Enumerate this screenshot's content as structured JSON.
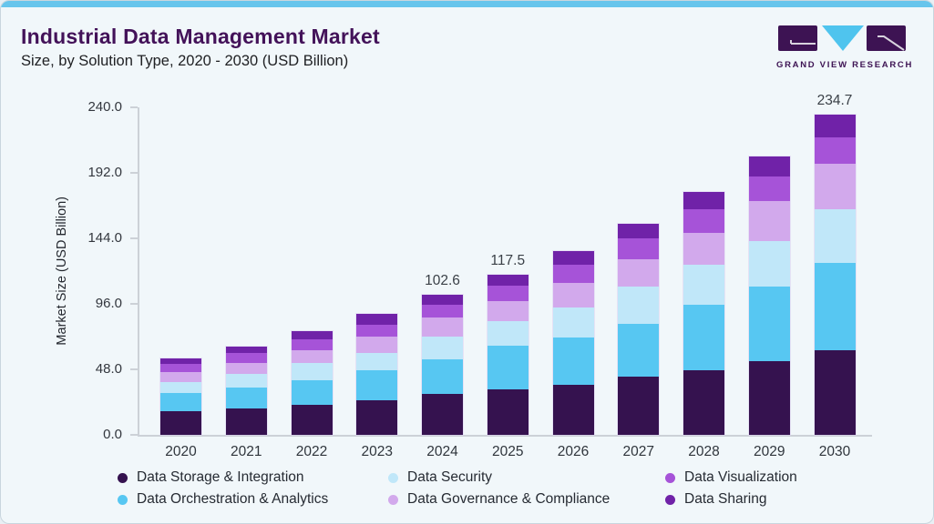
{
  "page": {
    "title": "Industrial Data Management Market",
    "subtitle": "Size, by Solution Type, 2020 - 2030 (USD Billion)",
    "logo_text": "GRAND VIEW RESEARCH"
  },
  "colors": {
    "accent_top_bar": "#67c5ec",
    "card_background": "#f1f7fa",
    "card_border": "#c9d6de",
    "title_text": "#431259",
    "subtitle_text": "#202124",
    "axis_line": "#ccd1d7",
    "tick_text": "#33373e",
    "legend_text": "#262b33",
    "logo_purple": "#3d1353",
    "logo_blue": "#4fc4ee"
  },
  "chart_data": {
    "type": "bar",
    "stacked": true,
    "title": "Industrial Data Management Market Size, by Solution Type, 2020 - 2030 (USD Billion)",
    "xlabel": "",
    "ylabel": "Market Size (USD Billion)",
    "ylim": [
      0,
      240
    ],
    "ytick_values": [
      0,
      48,
      96,
      144,
      192,
      240
    ],
    "ytick_format_decimals": 1,
    "grid": false,
    "categories": [
      "2020",
      "2021",
      "2022",
      "2023",
      "2024",
      "2025",
      "2026",
      "2027",
      "2028",
      "2029",
      "2030"
    ],
    "series": [
      {
        "name": "Data Storage & Integration",
        "color": "#35124f",
        "values": [
          17.3,
          19.1,
          21.9,
          25.4,
          29.9,
          33.3,
          37.0,
          42.5,
          47.5,
          54.1,
          62.0
        ]
      },
      {
        "name": "Data Orchestration & Analytics",
        "color": "#57c7f2",
        "values": [
          13.1,
          15.3,
          18.4,
          21.7,
          25.2,
          32.2,
          34.6,
          39.0,
          47.8,
          54.3,
          63.7
        ]
      },
      {
        "name": "Data Security",
        "color": "#c0e7f9",
        "values": [
          8.3,
          10.3,
          12.3,
          13.1,
          16.8,
          18.1,
          22.0,
          27.4,
          29.4,
          33.3,
          39.5
        ]
      },
      {
        "name": "Data Governance & Compliance",
        "color": "#d2a9ec",
        "values": [
          7.0,
          7.9,
          9.2,
          11.8,
          14.2,
          14.7,
          17.5,
          19.7,
          23.0,
          29.6,
          33.3
        ]
      },
      {
        "name": "Data Visualization",
        "color": "#a653d8",
        "values": [
          6.1,
          7.7,
          8.1,
          8.7,
          9.5,
          10.9,
          13.7,
          15.3,
          17.7,
          17.9,
          19.8
        ]
      },
      {
        "name": "Data Sharing",
        "color": "#7022a8",
        "values": [
          4.4,
          4.3,
          6.2,
          7.7,
          7.0,
          8.3,
          9.9,
          11.0,
          12.5,
          14.9,
          16.4
        ]
      }
    ],
    "stack_order_bottom_to_top": [
      "Data Storage & Integration",
      "Data Orchestration & Analytics",
      "Data Security",
      "Data Governance & Compliance",
      "Data Visualization",
      "Data Sharing"
    ],
    "totals": [
      56.2,
      64.6,
      76.1,
      88.4,
      102.6,
      117.5,
      134.7,
      154.9,
      177.9,
      204.1,
      234.7
    ],
    "total_labels": {
      "2024": "102.6",
      "2025": "117.5",
      "2030": "234.7"
    },
    "legend": {
      "position": "bottom",
      "rows": [
        [
          "Data Storage & Integration",
          "Data Security",
          "Data Visualization"
        ],
        [
          "Data Orchestration & Analytics",
          "Data Governance & Compliance",
          "Data Sharing"
        ]
      ]
    }
  }
}
